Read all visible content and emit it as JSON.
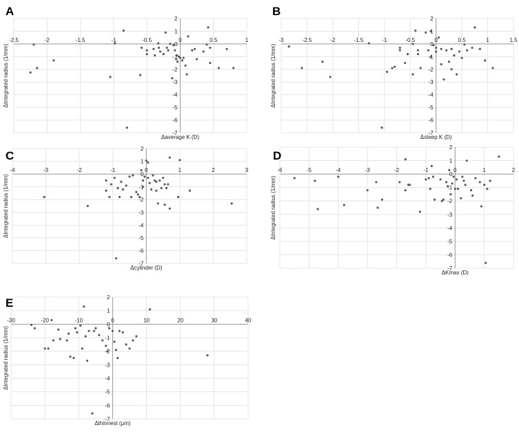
{
  "chart_data": [
    {
      "letter": "A",
      "type": "scatter",
      "xlabel": "Δaverage K (D)",
      "ylabel": "ΔIntegrated radius (1/mm)",
      "xlim": [
        -2.5,
        1
      ],
      "ylim": [
        -7,
        2
      ],
      "xticks": [
        -2.5,
        -2,
        -1.5,
        -1,
        -0.5,
        0,
        0.5,
        1
      ],
      "yticks": [
        -7,
        -6,
        -5,
        -4,
        -3,
        -2,
        -1,
        0,
        1,
        2
      ],
      "grid": true,
      "points": [
        [
          -2.2,
          -0.05
        ],
        [
          -2.25,
          -2.25
        ],
        [
          -2.15,
          -1.9
        ],
        [
          -1.9,
          -1.3
        ],
        [
          -1.05,
          -2.6
        ],
        [
          -0.98,
          0.05
        ],
        [
          -0.85,
          1.05
        ],
        [
          -0.8,
          -6.6
        ],
        [
          -0.6,
          -2.45
        ],
        [
          -0.58,
          -0.3
        ],
        [
          -0.5,
          -0.5
        ],
        [
          -0.5,
          -0.8
        ],
        [
          -0.4,
          -0.4
        ],
        [
          -0.38,
          -0.9
        ],
        [
          -0.33,
          0.05
        ],
        [
          -0.32,
          -0.3
        ],
        [
          -0.3,
          -0.6
        ],
        [
          -0.25,
          -0.8
        ],
        [
          -0.22,
          0.9
        ],
        [
          -0.2,
          -0.3
        ],
        [
          -0.18,
          -0.5
        ],
        [
          -0.15,
          0
        ],
        [
          -0.12,
          -2.7
        ],
        [
          -0.1,
          -0.1
        ],
        [
          -0.08,
          -0.5
        ],
        [
          -0.06,
          -1.2
        ],
        [
          -0.05,
          -0.9
        ],
        [
          -0.04,
          -1.4
        ],
        [
          -0.02,
          -1.0
        ],
        [
          0,
          -1.1
        ],
        [
          0.03,
          -1.3
        ],
        [
          0.05,
          -1.1
        ],
        [
          0.08,
          -1.7
        ],
        [
          0.1,
          -2.4
        ],
        [
          0.12,
          0.6
        ],
        [
          0.18,
          -0.5
        ],
        [
          0.22,
          -0.4
        ],
        [
          0.25,
          -1.2
        ],
        [
          0.35,
          -0.6
        ],
        [
          0.4,
          -0.05
        ],
        [
          0.42,
          1.3
        ],
        [
          0.45,
          -0.3
        ],
        [
          0.45,
          -1.5
        ],
        [
          0.58,
          -1.9
        ],
        [
          0.7,
          -0.4
        ],
        [
          0.8,
          -1.9
        ]
      ]
    },
    {
      "letter": "B",
      "type": "scatter",
      "xlabel": "Δsteep K (D)",
      "ylabel": "ΔIntegrated radius (1/mm)",
      "xlim": [
        -3,
        1.5
      ],
      "ylim": [
        -7,
        2
      ],
      "xticks": [
        -3,
        -2.5,
        -2,
        -1.5,
        -1,
        -0.5,
        0,
        0.5,
        1,
        1.5
      ],
      "yticks": [
        -7,
        -6,
        -5,
        -4,
        -3,
        -2,
        -1,
        0,
        1,
        2
      ],
      "grid": true,
      "points": [
        [
          -2.85,
          -0.2
        ],
        [
          -2.6,
          -1.9
        ],
        [
          -2.2,
          -1.4
        ],
        [
          -2.05,
          -2.6
        ],
        [
          -1.3,
          0.05
        ],
        [
          -1.05,
          -6.6
        ],
        [
          -0.95,
          -2.2
        ],
        [
          -0.85,
          -1.9
        ],
        [
          -0.8,
          -1.8
        ],
        [
          -0.7,
          -0.3
        ],
        [
          -0.7,
          -0.5
        ],
        [
          -0.6,
          -1.5
        ],
        [
          -0.55,
          -0.8
        ],
        [
          -0.45,
          0
        ],
        [
          -0.45,
          -2.4
        ],
        [
          -0.4,
          1.05
        ],
        [
          -0.35,
          -0.5
        ],
        [
          -0.35,
          -0.8
        ],
        [
          -0.3,
          -1.9
        ],
        [
          -0.2,
          0.9
        ],
        [
          -0.15,
          -0.5
        ],
        [
          -0.1,
          1.0
        ],
        [
          -0.1,
          -1.0
        ],
        [
          -0.05,
          -0.1
        ],
        [
          0,
          -0.3
        ],
        [
          0,
          -0.6
        ],
        [
          0.05,
          0.5
        ],
        [
          0.1,
          -0.4
        ],
        [
          0.1,
          -1.6
        ],
        [
          0.15,
          -2.8
        ],
        [
          0.2,
          -0.5
        ],
        [
          0.25,
          -1.4
        ],
        [
          0.3,
          -2.0
        ],
        [
          0.3,
          -0.4
        ],
        [
          0.35,
          -0.9
        ],
        [
          0.4,
          -2.4
        ],
        [
          0.45,
          -0.6
        ],
        [
          0.5,
          -1.1
        ],
        [
          0.55,
          -0.05
        ],
        [
          0.6,
          -0.5
        ],
        [
          0.7,
          -0.3
        ],
        [
          0.75,
          1.3
        ],
        [
          0.85,
          -0.4
        ],
        [
          0.95,
          -1.3
        ],
        [
          1.1,
          -1.9
        ]
      ]
    },
    {
      "letter": "C",
      "type": "scatter",
      "xlabel": "Δcylinder (D)",
      "ylabel": "ΔIntegrated radius (1/mm)",
      "xlim": [
        -4,
        3
      ],
      "ylim": [
        -7,
        2
      ],
      "xticks": [
        -4,
        -3,
        -2,
        -1,
        0,
        1,
        2,
        3
      ],
      "yticks": [
        -7,
        -6,
        -5,
        -4,
        -3,
        -2,
        -1,
        0,
        1,
        2
      ],
      "grid": true,
      "points": [
        [
          -3.05,
          -1.8
        ],
        [
          -1.75,
          -2.5
        ],
        [
          -1.2,
          -1.3
        ],
        [
          -1.2,
          -0.5
        ],
        [
          -1.1,
          -1.8
        ],
        [
          -1.05,
          -0.8
        ],
        [
          -0.95,
          -0.3
        ],
        [
          -0.9,
          -6.6
        ],
        [
          -0.85,
          -1.1
        ],
        [
          -0.8,
          -1.8
        ],
        [
          -0.75,
          -0.6
        ],
        [
          -0.7,
          -1.2
        ],
        [
          -0.6,
          -0.9
        ],
        [
          -0.5,
          -0.2
        ],
        [
          -0.45,
          -1.8
        ],
        [
          -0.4,
          -0.1
        ],
        [
          -0.3,
          -1.4
        ],
        [
          -0.25,
          -1.6
        ],
        [
          -0.2,
          -1.8
        ],
        [
          -0.15,
          0.3
        ],
        [
          -0.1,
          -0.5
        ],
        [
          -0.1,
          -1.0
        ],
        [
          -0.05,
          -0.2
        ],
        [
          0,
          1.05
        ],
        [
          0.05,
          0.9
        ],
        [
          0.05,
          -0.3
        ],
        [
          0.1,
          -0.7
        ],
        [
          0.15,
          -1.2
        ],
        [
          0.2,
          -0.1
        ],
        [
          0.25,
          -0.5
        ],
        [
          0.3,
          -0.6
        ],
        [
          0.3,
          -1.3
        ],
        [
          0.35,
          -2.3
        ],
        [
          0.4,
          -0.5
        ],
        [
          0.45,
          -1.1
        ],
        [
          0.5,
          -0.3
        ],
        [
          0.55,
          -0.8
        ],
        [
          0.55,
          -2.4
        ],
        [
          0.6,
          -1.1
        ],
        [
          0.65,
          -0.8
        ],
        [
          0.7,
          -2.7
        ],
        [
          0.7,
          1.3
        ],
        [
          0.95,
          -1.8
        ],
        [
          1.0,
          1.1
        ],
        [
          1.3,
          -1.3
        ],
        [
          2.55,
          -2.3
        ]
      ]
    },
    {
      "letter": "D",
      "type": "scatter",
      "xlabel": "ΔKmax (D)",
      "ylabel": "ΔIntegrated radius (1/mm)",
      "xlim": [
        -6,
        2
      ],
      "ylim": [
        -7,
        2
      ],
      "xticks": [
        -6,
        -5,
        -4,
        -3,
        -2,
        -1,
        0,
        1,
        2
      ],
      "yticks": [
        -7,
        -6,
        -5,
        -4,
        -3,
        -2,
        -1,
        0,
        1,
        2
      ],
      "grid": true,
      "points": [
        [
          -5.5,
          -0.3
        ],
        [
          -4.8,
          -0.5
        ],
        [
          -4.7,
          -2.6
        ],
        [
          -4.0,
          -0.2
        ],
        [
          -3.8,
          -2.3
        ],
        [
          -3.0,
          -1.2
        ],
        [
          -2.7,
          -0.6
        ],
        [
          -2.65,
          -2.5
        ],
        [
          -2.5,
          -1.9
        ],
        [
          -1.9,
          -0.6
        ],
        [
          -1.7,
          1.1
        ],
        [
          -1.7,
          -1.2
        ],
        [
          -1.6,
          -0.8
        ],
        [
          -1.55,
          -0.8
        ],
        [
          -1.2,
          -2.8
        ],
        [
          -1.0,
          -0.4
        ],
        [
          -0.9,
          -0.3
        ],
        [
          -0.85,
          -1.1
        ],
        [
          -0.8,
          0.6
        ],
        [
          -0.75,
          -0.2
        ],
        [
          -0.7,
          -1.9
        ],
        [
          -0.5,
          -0.4
        ],
        [
          -0.45,
          -2.0
        ],
        [
          -0.4,
          -1.9
        ],
        [
          -0.3,
          -0.6
        ],
        [
          -0.25,
          -0.9
        ],
        [
          -0.2,
          0.3
        ],
        [
          -0.15,
          -1.5
        ],
        [
          -0.1,
          -0.7
        ],
        [
          -0.05,
          -0.2
        ],
        [
          0,
          -1.1
        ],
        [
          0.05,
          -0.4
        ],
        [
          0.1,
          -1.1
        ],
        [
          0.2,
          -1.8
        ],
        [
          0.25,
          -0.2
        ],
        [
          0.3,
          -0.5
        ],
        [
          0.35,
          -0.8
        ],
        [
          0.4,
          1.0
        ],
        [
          0.55,
          -1.2
        ],
        [
          0.6,
          -1.6
        ],
        [
          0.7,
          -0.3
        ],
        [
          0.85,
          -0.6
        ],
        [
          0.9,
          -2.4
        ],
        [
          1.0,
          -0.8
        ],
        [
          1.05,
          -6.6
        ],
        [
          1.1,
          -1.1
        ],
        [
          1.2,
          -0.5
        ],
        [
          1.5,
          1.3
        ]
      ]
    },
    {
      "letter": "E",
      "type": "scatter",
      "xlabel": "Δthinnest (μm)",
      "ylabel": "ΔIntegrated radius (1/mm)",
      "xlim": [
        -30,
        40
      ],
      "ylim": [
        -7,
        2
      ],
      "xticks": [
        -30,
        -20,
        -10,
        0,
        10,
        20,
        30,
        40
      ],
      "yticks": [
        -7,
        -6,
        -5,
        -4,
        -3,
        -2,
        -1,
        0,
        1,
        2
      ],
      "grid": true,
      "points": [
        [
          -24,
          -0.05
        ],
        [
          -23,
          -0.3
        ],
        [
          -20,
          -1.8
        ],
        [
          -19,
          -1.8
        ],
        [
          -18,
          0.3
        ],
        [
          -17.5,
          -1.2
        ],
        [
          -16,
          -0.4
        ],
        [
          -15.5,
          -1.1
        ],
        [
          -13.5,
          -1.2
        ],
        [
          -13,
          -0.7
        ],
        [
          -12.5,
          -2.4
        ],
        [
          -11.5,
          -2.5
        ],
        [
          -11,
          -0.3
        ],
        [
          -10.5,
          -0.6
        ],
        [
          -9.5,
          -0.1
        ],
        [
          -9,
          -1.8
        ],
        [
          -8.5,
          1.3
        ],
        [
          -8,
          -0.9
        ],
        [
          -7.5,
          -2.7
        ],
        [
          -7,
          -0.5
        ],
        [
          -6,
          -6.6
        ],
        [
          -5.5,
          -0.5
        ],
        [
          -5,
          -0.3
        ],
        [
          -4,
          -0.8
        ],
        [
          -3,
          -1.2
        ],
        [
          -2,
          -1.6
        ],
        [
          -1.5,
          -2.0
        ],
        [
          -1,
          -0.3
        ],
        [
          0,
          -0.5
        ],
        [
          0.5,
          -1.3
        ],
        [
          1,
          -1.9
        ],
        [
          1.5,
          -2.5
        ],
        [
          2,
          -0.5
        ],
        [
          3,
          -0.6
        ],
        [
          4,
          -1.5
        ],
        [
          5,
          -1.8
        ],
        [
          6,
          -1.2
        ],
        [
          7,
          -0.9
        ],
        [
          11,
          1.1
        ],
        [
          28,
          -2.3
        ]
      ]
    }
  ]
}
